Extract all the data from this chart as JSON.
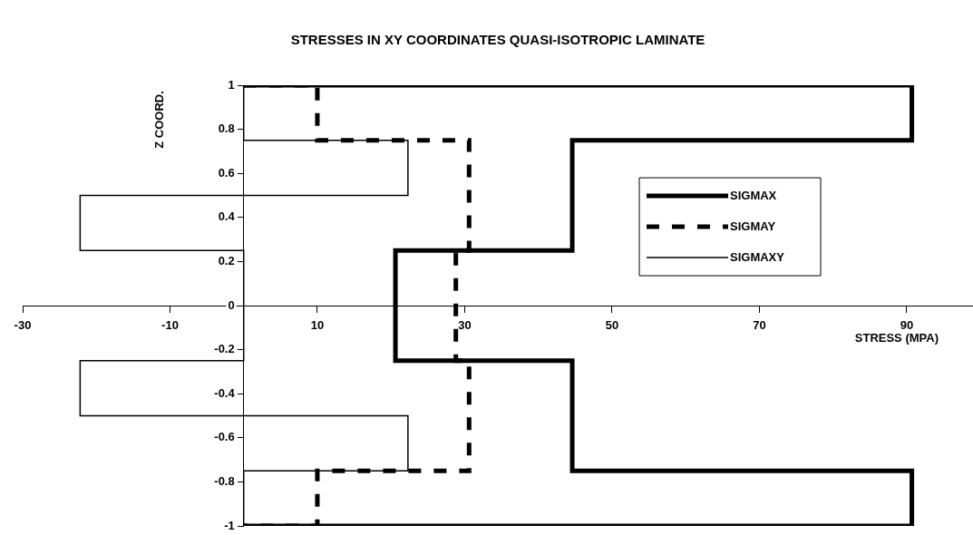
{
  "chart_data": {
    "type": "line",
    "title": "STRESSES IN XY COORDINATES QUASI-ISOTROPIC LAMINATE",
    "xlabel": "STRESS (MPA)",
    "ylabel": "Z COORD.",
    "xlim": [
      -30,
      99
    ],
    "xticks": [
      -30,
      -10,
      10,
      30,
      50,
      70,
      90
    ],
    "ylim": [
      -1,
      1
    ],
    "yticks": [
      -1,
      -0.8,
      -0.6,
      -0.4,
      -0.2,
      0,
      0.2,
      0.4,
      0.6,
      0.8,
      1
    ],
    "grid": false,
    "legend": "right",
    "marker": "none",
    "series": [
      {
        "name": "SIGMAX",
        "color": "#000000",
        "line_style": "solid",
        "x": [
          0,
          90.7,
          90.7,
          44.6,
          44.6,
          20.6,
          20.6,
          44.6,
          44.6,
          90.7,
          90.7,
          0
        ],
        "values": [
          1,
          1,
          0.75,
          0.75,
          0.25,
          0.25,
          -0.25,
          -0.25,
          -0.75,
          -0.75,
          -1,
          -1
        ]
      },
      {
        "name": "SIGMAY",
        "color": "#000000",
        "line_style": "dashed",
        "x": [
          0,
          10,
          10,
          30.6,
          30.6,
          28.8,
          28.8,
          30.6,
          30.6,
          10,
          10,
          0
        ],
        "values": [
          1,
          1,
          0.75,
          0.75,
          0.25,
          0.25,
          -0.25,
          -0.25,
          -0.75,
          -0.75,
          -1,
          -1
        ]
      },
      {
        "name": "SIGMAXY",
        "color": "#000000",
        "line_style": "solid",
        "x": [
          0,
          0,
          22.3,
          22.3,
          -22.2,
          -22.2,
          0,
          0,
          -22.2,
          -22.2,
          22.3,
          22.3,
          0,
          0
        ],
        "values": [
          1,
          0.75,
          0.75,
          0.5,
          0.5,
          0.25,
          0.25,
          -0.25,
          -0.25,
          -0.5,
          -0.5,
          -0.75,
          -0.75,
          -1
        ]
      }
    ]
  }
}
